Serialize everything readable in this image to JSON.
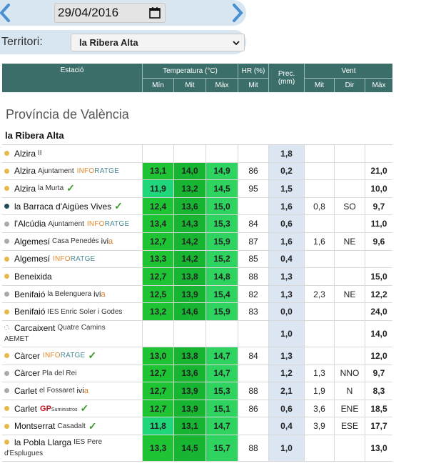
{
  "date": {
    "value": "29/04/2016"
  },
  "territory": {
    "label": "Territori:",
    "selected": "la Ribera Alta"
  },
  "header": {
    "station": "Estació",
    "temperature": "Temperatura (°C)",
    "hr": "HR (%)",
    "prec": "Prec.\n(mm)",
    "wind": "Vent",
    "min": "Mín",
    "mit": "Mit",
    "max": "Màx",
    "hr_mit": "Mit",
    "wind_mit": "Mit",
    "wind_dir": "Dir",
    "wind_max": "Màx"
  },
  "province": "Província de València",
  "comarca": "la Ribera Alta",
  "colors": {
    "header_bg": "#3c6e69",
    "green": "#1fc435",
    "prec_bg": "#dbe6f2",
    "accent_blue": "#4a90d0"
  },
  "rows": [
    {
      "name": "Alzira",
      "sub": "II",
      "dot": "#e8b84a",
      "tmin": "",
      "tmit": "",
      "tmax": "",
      "hr": "",
      "prec": "1,8",
      "wmit": "",
      "wdir": "",
      "wmax": "",
      "check": false
    },
    {
      "name": "Alzira",
      "sub": "Ajuntament",
      "info": true,
      "dot": "#e8b84a",
      "tmin": "13,1",
      "tmit": "14,0",
      "tmax": "14,9",
      "hr": "86",
      "prec": "0,2",
      "wmit": "",
      "wdir": "",
      "wmax": "21,0",
      "check": false
    },
    {
      "name": "Alzira",
      "sub": "la Murta",
      "dot": "#e8b84a",
      "tmin": "11,9",
      "tmit": "13,2",
      "tmax": "14,5",
      "hr": "95",
      "prec": "1,5",
      "wmit": "",
      "wdir": "",
      "wmax": "10,0",
      "check": true,
      "c1": "g4"
    },
    {
      "name": "la Barraca d'Aigües Vives",
      "sub": "",
      "dot": "#1f4e5a",
      "tmin": "12,4",
      "tmit": "13,6",
      "tmax": "15,0",
      "hr": "",
      "prec": "1,6",
      "wmit": "0,8",
      "wdir": "SO",
      "wmax": "9,7",
      "check": true
    },
    {
      "name": "l'Alcúdia",
      "sub": "Ajuntament",
      "info": true,
      "dot": "#aaaaaa",
      "tmin": "13,4",
      "tmit": "14,3",
      "tmax": "15,3",
      "hr": "84",
      "prec": "0,6",
      "wmit": "",
      "wdir": "",
      "wmax": "11,0",
      "check": false
    },
    {
      "name": "Algemesí",
      "sub": "Casa Penedés",
      "ivia": true,
      "dot": "#aaaaaa",
      "tmin": "12,7",
      "tmit": "14,2",
      "tmax": "15,9",
      "hr": "87",
      "prec": "1,6",
      "wmit": "1,6",
      "wdir": "NE",
      "wmax": "9,6",
      "check": false
    },
    {
      "name": "Algemesí",
      "sub": "",
      "info": true,
      "dot": "#e8b84a",
      "tmin": "13,3",
      "tmit": "14,2",
      "tmax": "15,2",
      "hr": "85",
      "prec": "0,4",
      "wmit": "",
      "wdir": "",
      "wmax": "",
      "check": false
    },
    {
      "name": "Beneixida",
      "sub": "",
      "dot": "#e8b84a",
      "tmin": "12,7",
      "tmit": "13,8",
      "tmax": "14,8",
      "hr": "88",
      "prec": "1,3",
      "wmit": "",
      "wdir": "",
      "wmax": "15,0",
      "check": false
    },
    {
      "name": "Benifaió",
      "sub": "la Belenguera",
      "ivia": true,
      "dot": "#aaaaaa",
      "tmin": "12,5",
      "tmit": "13,9",
      "tmax": "15,4",
      "hr": "82",
      "prec": "1,3",
      "wmit": "2,3",
      "wdir": "NE",
      "wmax": "12,2",
      "check": false
    },
    {
      "name": "Benifaió",
      "sub": "IES Enric Soler i Godes",
      "dot": "#e8b84a",
      "tmin": "13,2",
      "tmit": "14,6",
      "tmax": "15,9",
      "hr": "83",
      "prec": "0,0",
      "wmit": "",
      "wdir": "",
      "wmax": "24,0",
      "check": false
    },
    {
      "name": "Carcaixent",
      "sub": "Quatre Camins",
      "sub2": "AEMET",
      "dot": "#ffffff",
      "tall": true,
      "tmin": "",
      "tmit": "",
      "tmax": "",
      "hr": "",
      "prec": "1,0",
      "wmit": "",
      "wdir": "",
      "wmax": "14,0",
      "check": false
    },
    {
      "name": "Càrcer",
      "sub": "",
      "info": true,
      "dot": "#e8b84a",
      "tmin": "13,0",
      "tmit": "13,8",
      "tmax": "14,7",
      "hr": "84",
      "prec": "1,3",
      "wmit": "",
      "wdir": "",
      "wmax": "12,0",
      "check": true
    },
    {
      "name": "Càrcer",
      "sub": "Pla del Rei",
      "dot": "#aaaaaa",
      "tmin": "12,7",
      "tmit": "13,6",
      "tmax": "14,7",
      "hr": "",
      "prec": "1,2",
      "wmit": "1,3",
      "wdir": "NNO",
      "wmax": "9,7",
      "check": false
    },
    {
      "name": "Carlet",
      "sub": "el Fossaret",
      "ivia": true,
      "dot": "#aaaaaa",
      "tmin": "12,7",
      "tmit": "13,9",
      "tmax": "15,3",
      "hr": "88",
      "prec": "2,1",
      "wmit": "1,9",
      "wdir": "N",
      "wmax": "8,3",
      "check": false
    },
    {
      "name": "Carlet",
      "sub": "",
      "gp": true,
      "dot": "#e8b84a",
      "tmin": "12,7",
      "tmit": "13,9",
      "tmax": "15,1",
      "hr": "86",
      "prec": "0,6",
      "wmit": "3,6",
      "wdir": "ENE",
      "wmax": "18,5",
      "check": true
    },
    {
      "name": "Montserrat",
      "sub": "Casadalt",
      "dot": "#e8b84a",
      "tmin": "11,8",
      "tmit": "13,1",
      "tmax": "14,7",
      "hr": "",
      "prec": "0,4",
      "wmit": "3,9",
      "wdir": "ESE",
      "wmax": "17,7",
      "check": true,
      "c1": "g4"
    },
    {
      "name": "la Pobla Llarga",
      "sub": "IES Pere",
      "sub2": "d'Esplugues",
      "dot": "#e8b84a",
      "tall": true,
      "tmin": "13,3",
      "tmit": "14,5",
      "tmax": "15,7",
      "hr": "88",
      "prec": "1,0",
      "wmit": "",
      "wdir": "",
      "wmax": "13,0",
      "check": false
    }
  ],
  "labels": {
    "info_a": "INFO",
    "info_b": "RATGE",
    "ivia_a": "ivi",
    "ivia_b": "a",
    "gp_a": "GP",
    "gp_b": "Suministros",
    "check": "✓"
  }
}
